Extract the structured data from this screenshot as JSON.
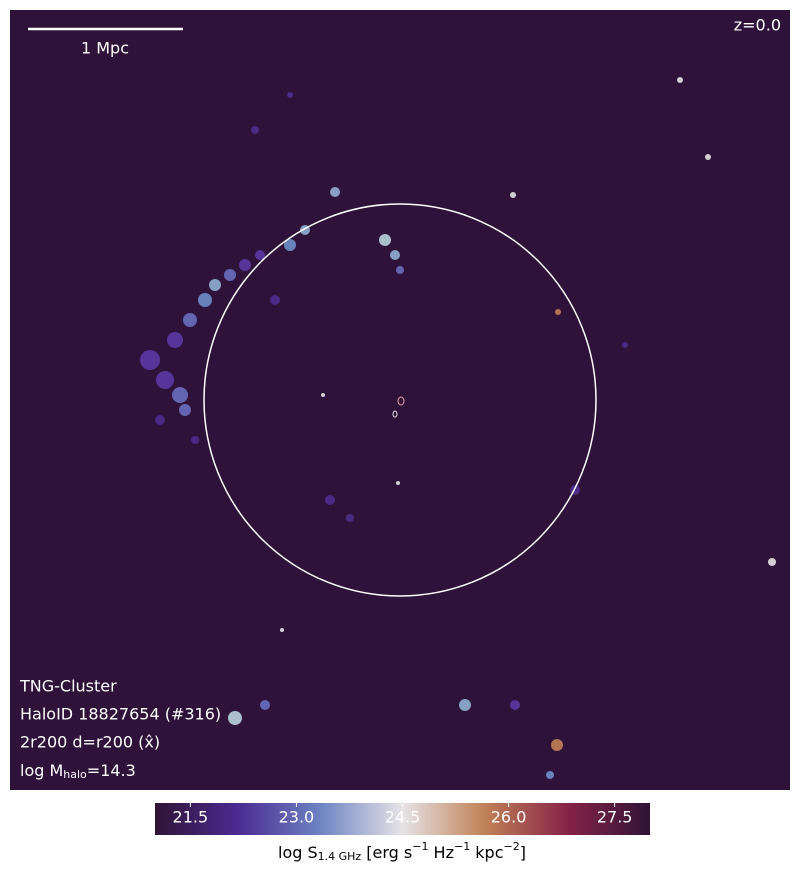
{
  "chart_data": {
    "type": "image",
    "scale_bar": "1 Mpc",
    "redshift": "z=0.0",
    "annotations": [
      "TNG-Cluster",
      "HaloID 18827654 (#316)",
      "2r200 d=r200 (x̂)"
    ],
    "mass_label": [
      "log M",
      "halo",
      "=14.3"
    ],
    "colorbar": {
      "label": [
        "log S",
        "1.4 GHz",
        " [erg s",
        "−1",
        " Hz",
        "−1",
        " kpc",
        "−2",
        "]"
      ],
      "clim": [
        21,
        28
      ],
      "ticks": [
        21.5,
        {
          "value": 23,
          "label": "23.0"
        },
        24.5,
        {
          "value": 26,
          "label": "26.0"
        },
        27.5
      ],
      "colors": [
        "#2f1436",
        "#4b2a91",
        "#6d83c3",
        "#e6e3e6",
        "#c08156",
        "#862348",
        "#2f1436"
      ]
    }
  }
}
